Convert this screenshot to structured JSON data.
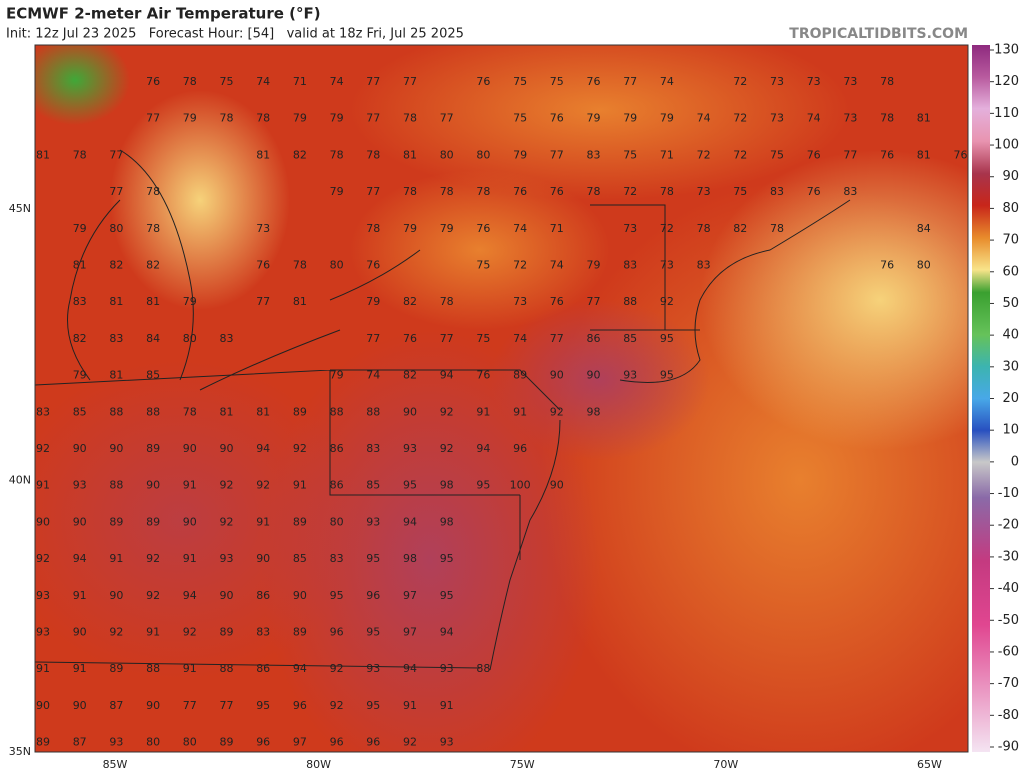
{
  "header": {
    "title": "ECMWF 2-meter Air Temperature (°F)",
    "subtitle": "Init: 12z Jul 23 2025   Forecast Hour: [54]   valid at 18z Fri, Jul 25 2025",
    "watermark": "TROPICALTIDBITS.COM"
  },
  "map": {
    "lon_labels": [
      "85W",
      "80W",
      "75W",
      "70W",
      "65W"
    ],
    "lat_labels": [
      "45N",
      "40N",
      "35N"
    ],
    "rows": [
      [
        null,
        null,
        null,
        76,
        78,
        75,
        74,
        71,
        74,
        77,
        77,
        null,
        76,
        75,
        75,
        76,
        77,
        74,
        null,
        72,
        73,
        73,
        73,
        78
      ],
      [
        null,
        null,
        null,
        77,
        79,
        78,
        78,
        79,
        79,
        77,
        78,
        77,
        null,
        75,
        76,
        79,
        79,
        79,
        74,
        72,
        73,
        74,
        73,
        78,
        81
      ],
      [
        81,
        78,
        77,
        null,
        null,
        null,
        81,
        82,
        78,
        78,
        81,
        80,
        80,
        79,
        77,
        83,
        75,
        71,
        72,
        72,
        75,
        76,
        77,
        76,
        81,
        76
      ],
      [
        null,
        null,
        77,
        78,
        null,
        null,
        null,
        null,
        79,
        77,
        78,
        78,
        78,
        76,
        76,
        78,
        72,
        78,
        73,
        75,
        83,
        76,
        83
      ],
      [
        null,
        79,
        80,
        78,
        null,
        null,
        73,
        null,
        null,
        78,
        79,
        79,
        76,
        74,
        71,
        null,
        73,
        72,
        78,
        82,
        78,
        null,
        null,
        null,
        84
      ],
      [
        null,
        81,
        82,
        82,
        null,
        null,
        76,
        78,
        80,
        76,
        null,
        null,
        75,
        72,
        74,
        79,
        83,
        73,
        83,
        null,
        null,
        null,
        null,
        76,
        80
      ],
      [
        null,
        83,
        81,
        81,
        79,
        null,
        77,
        81,
        null,
        79,
        82,
        78,
        null,
        73,
        76,
        77,
        88,
        92
      ],
      [
        null,
        82,
        83,
        84,
        80,
        83,
        null,
        null,
        null,
        77,
        76,
        77,
        75,
        74,
        77,
        86,
        85,
        95
      ],
      [
        null,
        79,
        81,
        85,
        null,
        null,
        null,
        null,
        79,
        74,
        82,
        94,
        76,
        89,
        90,
        90,
        93,
        95
      ],
      [
        83,
        85,
        88,
        88,
        78,
        81,
        81,
        89,
        88,
        88,
        90,
        92,
        91,
        91,
        92,
        98
      ],
      [
        92,
        90,
        90,
        89,
        90,
        90,
        94,
        92,
        86,
        83,
        93,
        92,
        94,
        96
      ],
      [
        91,
        93,
        88,
        90,
        91,
        92,
        92,
        91,
        86,
        85,
        95,
        98,
        95,
        100,
        90
      ],
      [
        90,
        90,
        89,
        89,
        90,
        92,
        91,
        89,
        80,
        93,
        94,
        98
      ],
      [
        92,
        94,
        91,
        92,
        91,
        93,
        90,
        85,
        83,
        95,
        98,
        95
      ],
      [
        93,
        91,
        90,
        92,
        94,
        90,
        86,
        90,
        95,
        96,
        97,
        95
      ],
      [
        93,
        90,
        92,
        91,
        92,
        89,
        83,
        89,
        96,
        95,
        97,
        94
      ],
      [
        91,
        91,
        89,
        88,
        91,
        88,
        86,
        94,
        92,
        93,
        94,
        93,
        88
      ],
      [
        90,
        90,
        87,
        90,
        77,
        77,
        95,
        96,
        92,
        95,
        91,
        91
      ],
      [
        89,
        87,
        93,
        80,
        80,
        89,
        96,
        97,
        96,
        96,
        92,
        93
      ]
    ]
  },
  "colorbar": {
    "range": [
      -90,
      130
    ],
    "ticks": [
      130,
      120,
      110,
      100,
      90,
      80,
      70,
      60,
      50,
      40,
      30,
      20,
      10,
      0,
      -10,
      -20,
      -30,
      -40,
      -50,
      -60,
      -70,
      -80,
      -90
    ]
  }
}
